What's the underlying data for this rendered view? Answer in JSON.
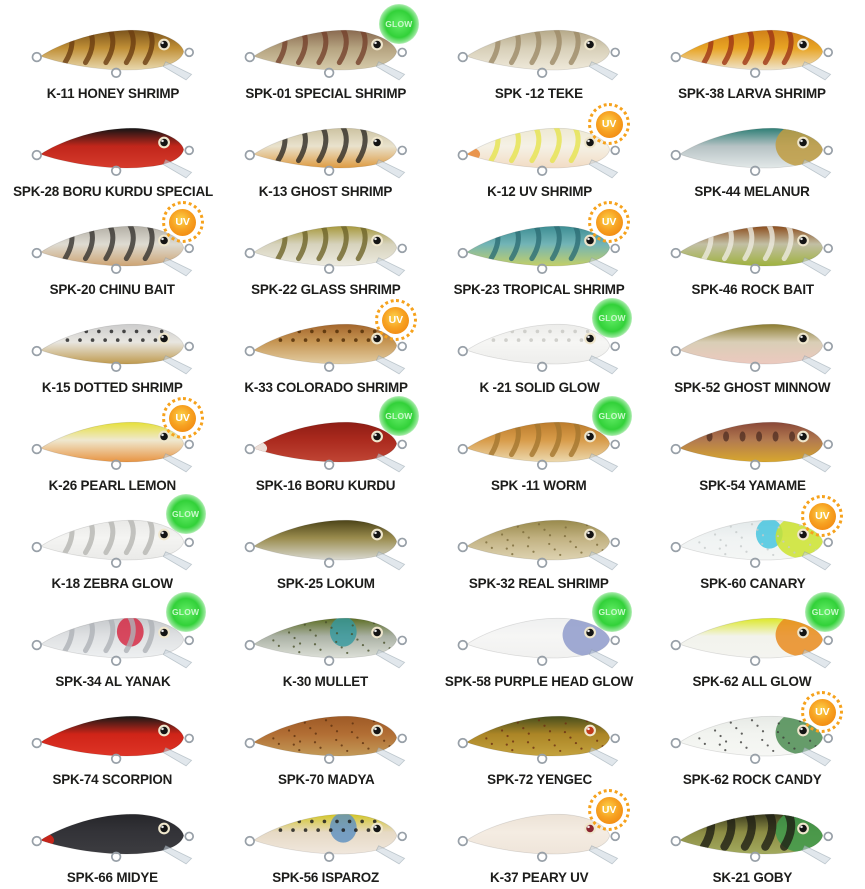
{
  "page": {
    "background": "#ffffff",
    "label_color": "#1d1d1b"
  },
  "badge_labels": {
    "glow": "GLOW",
    "uv": "UV"
  },
  "badge_colors": {
    "glow": "#32d139",
    "uv": "#ef7d08",
    "uv_rays": "#f6a21c"
  },
  "items": [
    {
      "label": "K-11 HONEY SHRIMP",
      "badge": null,
      "colors": {
        "back": "#7c541c",
        "mid": "#c08f36",
        "belly": "#e9d9ae"
      },
      "pattern": {
        "type": "stripes",
        "color": "#6a3c10"
      }
    },
    {
      "label": "SPK-01 SPECIAL SHRIMP",
      "badge": "glow",
      "colors": {
        "back": "#8a6a50",
        "mid": "#b5a380",
        "belly": "#d6cbaa"
      },
      "pattern": {
        "type": "stripes",
        "color": "#74412c"
      }
    },
    {
      "label": "SPK -12 TEKE",
      "badge": null,
      "colors": {
        "back": "#b6a989",
        "mid": "#d7cfb8",
        "belly": "#efe9da"
      },
      "pattern": {
        "type": "stripes",
        "color": "#9c8a66"
      }
    },
    {
      "label": "SPK-38 LARVA SHRIMP",
      "badge": null,
      "colors": {
        "back": "#d08018",
        "mid": "#e8a424",
        "belly": "#efe4cc"
      },
      "pattern": {
        "type": "stripes",
        "color": "#9e3514"
      }
    },
    {
      "label": "SPK-28 BORU KURDU SPECIAL",
      "badge": null,
      "colors": {
        "back": "#151515",
        "mid": "#c1261b",
        "belly": "#d63b2c"
      },
      "pattern": {
        "type": "none",
        "color": ""
      }
    },
    {
      "label": "K-13 GHOST SHRIMP",
      "badge": null,
      "colors": {
        "back": "#cdc3a2",
        "mid": "#e9e2cd",
        "belly": "#de9b42"
      },
      "pattern": {
        "type": "stripes",
        "color": "#2e2a24"
      }
    },
    {
      "label": "K-12 UV SHRIMP",
      "badge": "uv",
      "colors": {
        "back": "#eee9d2",
        "mid": "#f5f1e6",
        "belly": "#f2dcc4",
        "tail": "#e89046"
      },
      "pattern": {
        "type": "stripes",
        "color": "#e6e44e"
      }
    },
    {
      "label": "SPK-44 MELANUR",
      "badge": null,
      "colors": {
        "back": "#2f7f76",
        "mid": "#b6c2c4",
        "belly": "#e2e8e8",
        "head": "#bf9c42"
      },
      "pattern": {
        "type": "none",
        "color": ""
      }
    },
    {
      "label": "SPK-20 CHINU BAIT",
      "badge": "uv",
      "colors": {
        "back": "#b4b0a6",
        "mid": "#dedbd2",
        "belly": "#cda474"
      },
      "pattern": {
        "type": "stripes",
        "color": "#35322e"
      }
    },
    {
      "label": "SPK-22 GLASS SHRIMP",
      "badge": null,
      "colors": {
        "back": "#a89a3e",
        "mid": "#d6d2bc",
        "belly": "#edebe0"
      },
      "pattern": {
        "type": "stripes",
        "color": "#6e6428"
      }
    },
    {
      "label": "SPK-23 TROPICAL SHRIMP",
      "badge": "uv",
      "colors": {
        "back": "#3e8e94",
        "mid": "#72b4b6",
        "belly": "#c3cf68"
      },
      "pattern": {
        "type": "stripes",
        "color": "#2d6e76"
      }
    },
    {
      "label": "SPK-46 ROCK BAIT",
      "badge": null,
      "colors": {
        "back": "#8c4e1e",
        "mid": "#c2bfa4",
        "belly": "#9fb23e"
      },
      "pattern": {
        "type": "stripes",
        "color": "#eceadf"
      }
    },
    {
      "label": "K-15 DOTTED SHRIMP",
      "badge": null,
      "colors": {
        "back": "#cccccc",
        "mid": "#e8e6e0",
        "belly": "#bf9a4e"
      },
      "pattern": {
        "type": "dots",
        "color": "#2a2a2a"
      }
    },
    {
      "label": "K-33 COLORADO SHRIMP",
      "badge": "uv",
      "colors": {
        "back": "#a4662c",
        "mid": "#c69654",
        "belly": "#e3cda2"
      },
      "pattern": {
        "type": "dots",
        "color": "#553008"
      }
    },
    {
      "label": "K -21 SOLID GLOW",
      "badge": "glow",
      "colors": {
        "back": "#ececea",
        "mid": "#f6f6f4",
        "belly": "#eeeeec"
      },
      "pattern": {
        "type": "dots",
        "color": "#c9c9c4"
      }
    },
    {
      "label": "SPK-52 GHOST MINNOW",
      "badge": null,
      "colors": {
        "back": "#8c7c30",
        "mid": "#d9ceb6",
        "belly": "#ecc9bf"
      },
      "pattern": {
        "type": "none",
        "color": ""
      }
    },
    {
      "label": "K-26 PEARL LEMON",
      "badge": "uv",
      "colors": {
        "back": "#e6e038",
        "mid": "#efe8cf",
        "belly": "#e89442"
      },
      "pattern": {
        "type": "none",
        "color": ""
      }
    },
    {
      "label": "SPK-16  BORU KURDU",
      "badge": "glow",
      "colors": {
        "back": "#8e1d14",
        "mid": "#ab2a1e",
        "belly": "#c04534",
        "tail": "#efe9e2"
      },
      "pattern": {
        "type": "none",
        "color": ""
      }
    },
    {
      "label": "SPK -11 WORM",
      "badge": "glow",
      "colors": {
        "back": "#bc7c2c",
        "mid": "#d89c4a",
        "belly": "#ecd9ae"
      },
      "pattern": {
        "type": "stripes",
        "color": "#a4752e"
      }
    },
    {
      "label": "SPK-54 YAMAME",
      "badge": null,
      "colors": {
        "back": "#8a4838",
        "mid": "#b27a50",
        "belly": "#d8a72e"
      },
      "pattern": {
        "type": "parr",
        "color": "#4e2c22"
      }
    },
    {
      "label": "K-18 ZEBRA GLOW",
      "badge": "glow",
      "colors": {
        "back": "#e9e9e7",
        "mid": "#f4f4f2",
        "belly": "#eaeae8"
      },
      "pattern": {
        "type": "stripes",
        "color": "#b5b5b1"
      }
    },
    {
      "label": "SPK-25 LOKUM",
      "badge": null,
      "colors": {
        "back": "#4c4418",
        "mid": "#9a8c4e",
        "belly": "#d9d9d1"
      },
      "pattern": {
        "type": "none",
        "color": ""
      }
    },
    {
      "label": "SPK-32 REAL SHRIMP",
      "badge": null,
      "colors": {
        "back": "#998a4c",
        "mid": "#c1b181",
        "belly": "#ded3b2"
      },
      "pattern": {
        "type": "specks",
        "color": "#7a6a3a"
      }
    },
    {
      "label": "SPK-60 CANARY",
      "badge": "uv",
      "colors": {
        "back": "#e3e9ea",
        "mid": "#f0f3f3",
        "belly": "#f4f6f5",
        "head": "#cde32e",
        "head2": "#3ec3de"
      },
      "pattern": {
        "type": "specks",
        "color": "#c5cbcb"
      }
    },
    {
      "label": "SPK-34 AL YANAK",
      "badge": "glow",
      "colors": {
        "back": "#c6c9cc",
        "mid": "#dfe1e3",
        "belly": "#eef0f1",
        "head2": "#d5203c"
      },
      "pattern": {
        "type": "stripes",
        "color": "#aeb2b6"
      }
    },
    {
      "label": "K-30 MULLET",
      "badge": null,
      "colors": {
        "back": "#5d6e24",
        "mid": "#aab1a4",
        "belly": "#dde0d8",
        "head2": "#33999f"
      },
      "pattern": {
        "type": "specks",
        "color": "#49502a"
      }
    },
    {
      "label": "SPK-58 PURPLE HEAD GLOW",
      "badge": "glow",
      "colors": {
        "back": "#eff0f0",
        "mid": "#f6f6f5",
        "belly": "#f1f1f0",
        "head": "#8f9bcb"
      },
      "pattern": {
        "type": "none",
        "color": ""
      }
    },
    {
      "label": "SPK-62 ALL GLOW",
      "badge": "glow",
      "colors": {
        "back": "#dde829",
        "mid": "#f2f3ec",
        "belly": "#f4f4f0",
        "head": "#e98b1e"
      },
      "pattern": {
        "type": "none",
        "color": ""
      }
    },
    {
      "label": "SPK-74 SCORPION",
      "badge": null,
      "colors": {
        "back": "#191917",
        "mid": "#cf2418",
        "belly": "#de3426"
      },
      "pattern": {
        "type": "none",
        "color": ""
      }
    },
    {
      "label": "SPK-70 MADYA",
      "badge": null,
      "colors": {
        "back": "#9e5a26",
        "mid": "#b26e34",
        "belly": "#c39a58"
      },
      "pattern": {
        "type": "specks",
        "color": "#5e3210"
      }
    },
    {
      "label": "SPK-72 YENGEC",
      "badge": null,
      "colors": {
        "back": "#474e1c",
        "mid": "#ab8526",
        "belly": "#c4a23e",
        "eye": "#c23a1a"
      },
      "pattern": {
        "type": "specks",
        "color": "#6b2e14"
      }
    },
    {
      "label": "SPK-62 ROCK CANDY",
      "badge": "uv",
      "colors": {
        "back": "#e7eae6",
        "mid": "#f2f4f0",
        "belly": "#f6f7f4",
        "head": "#4c8c52"
      },
      "pattern": {
        "type": "specks",
        "color": "#3c3c3a"
      }
    },
    {
      "label": "SPK-66 MIDYE",
      "badge": null,
      "colors": {
        "back": "#26262a",
        "mid": "#333338",
        "belly": "#3c3c40",
        "tail": "#cc2418"
      },
      "pattern": {
        "type": "none",
        "color": ""
      }
    },
    {
      "label": "SPK-56 ISPAROZ",
      "badge": null,
      "colors": {
        "back": "#d4c626",
        "mid": "#e6d9c4",
        "belly": "#f0e7dd",
        "head2": "#5a8fc0"
      },
      "pattern": {
        "type": "dots",
        "color": "#1f1f1d"
      }
    },
    {
      "label": "K-37 PEARY UV",
      "badge": "uv",
      "colors": {
        "back": "#ece2d6",
        "mid": "#f4ece2",
        "belly": "#efe5da",
        "eye": "#8a2430"
      },
      "pattern": {
        "type": "none",
        "color": ""
      }
    },
    {
      "label": "SK-21 GOBY",
      "badge": null,
      "colors": {
        "back": "#3c3c1e",
        "mid": "#8c8c44",
        "belly": "#a2aa5e",
        "head": "#3f9a4b"
      },
      "pattern": {
        "type": "bars",
        "color": "#1e1e14"
      }
    }
  ]
}
